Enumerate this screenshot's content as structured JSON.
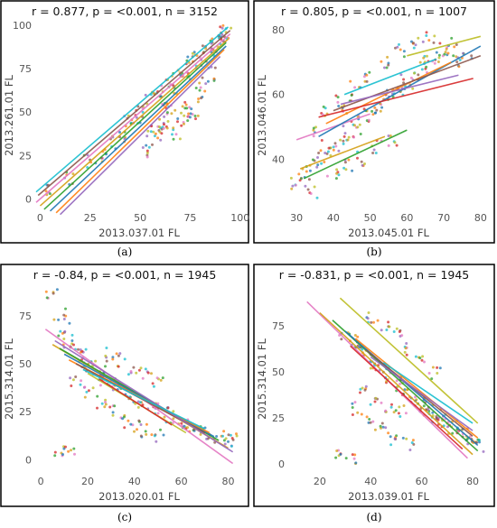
{
  "chart_data": [
    {
      "type": "scatter",
      "title": "r = 0.877, p = <0.001, n = 3152",
      "xlabel": "2013.037.01 FL",
      "ylabel": "2013.261.01 FL",
      "xlim": [
        -2,
        101
      ],
      "ylim": [
        -5,
        101
      ],
      "xticks": [
        "0",
        "25",
        "50",
        "75",
        "100"
      ],
      "yticks": [
        "0",
        "25",
        "50",
        "75",
        "100"
      ],
      "caption": "(a)",
      "grid": false,
      "legend": "none",
      "series_colors": [
        "#e377c2",
        "#d4a017",
        "#2ca02c",
        "#1f77b4",
        "#ff7f0e",
        "#8c564b",
        "#9467bd",
        "#17becf",
        "#bcbd22",
        "#d62728"
      ],
      "points": [
        [
          5,
          6
        ],
        [
          15,
          12
        ],
        [
          25,
          22
        ],
        [
          35,
          32
        ],
        [
          45,
          44
        ],
        [
          50,
          50
        ],
        [
          55,
          58
        ],
        [
          60,
          62
        ],
        [
          65,
          68
        ],
        [
          70,
          74
        ],
        [
          75,
          78
        ],
        [
          80,
          83
        ],
        [
          85,
          88
        ],
        [
          90,
          93
        ],
        [
          93,
          96
        ],
        [
          58,
          40
        ],
        [
          62,
          45
        ],
        [
          66,
          52
        ],
        [
          70,
          48
        ],
        [
          74,
          55
        ],
        [
          78,
          60
        ],
        [
          82,
          66
        ],
        [
          86,
          72
        ],
        [
          55,
          35
        ],
        [
          60,
          38
        ],
        [
          52,
          28
        ],
        [
          64,
          42
        ],
        [
          68,
          38
        ],
        [
          72,
          44
        ],
        [
          76,
          50
        ],
        [
          30,
          25
        ],
        [
          40,
          36
        ],
        [
          48,
          47
        ],
        [
          88,
          90
        ],
        [
          91,
          92
        ],
        [
          84,
          86
        ],
        [
          79,
          80
        ],
        [
          73,
          72
        ],
        [
          67,
          64
        ],
        [
          63,
          58
        ]
      ],
      "fit_lines": [
        [
          [
            -2,
            -2
          ],
          [
            95,
            95
          ]
        ],
        [
          [
            0,
            -4
          ],
          [
            94,
            92
          ]
        ],
        [
          [
            2,
            -6
          ],
          [
            93,
            90
          ]
        ],
        [
          [
            5,
            -7
          ],
          [
            93,
            88
          ]
        ],
        [
          [
            8,
            -8
          ],
          [
            92,
            86
          ]
        ],
        [
          [
            -1,
            2
          ],
          [
            95,
            97
          ]
        ],
        [
          [
            10,
            -9
          ],
          [
            90,
            82
          ]
        ],
        [
          [
            -2,
            4
          ],
          [
            94,
            99
          ]
        ]
      ]
    },
    {
      "type": "scatter",
      "title": "r = 0.805, p = <0.001, n = 1007",
      "xlabel": "2013.045.01 FL",
      "ylabel": "2013.046.01 FL",
      "xlim": [
        28,
        82
      ],
      "ylim": [
        25,
        82
      ],
      "xticks": [
        "30",
        "40",
        "50",
        "60",
        "70",
        "80"
      ],
      "yticks": [
        "40",
        "60",
        "80"
      ],
      "caption": "(b)",
      "grid": false,
      "legend": "none",
      "series_colors": [
        "#e377c2",
        "#d4a017",
        "#2ca02c",
        "#1f77b4",
        "#ff7f0e",
        "#8c564b",
        "#9467bd",
        "#17becf",
        "#bcbd22",
        "#d62728"
      ],
      "points": [
        [
          32,
          35
        ],
        [
          34,
          38
        ],
        [
          36,
          40
        ],
        [
          38,
          42
        ],
        [
          40,
          44
        ],
        [
          42,
          46
        ],
        [
          44,
          48
        ],
        [
          46,
          50
        ],
        [
          48,
          52
        ],
        [
          50,
          54
        ],
        [
          52,
          56
        ],
        [
          54,
          58
        ],
        [
          56,
          60
        ],
        [
          58,
          62
        ],
        [
          60,
          64
        ],
        [
          62,
          66
        ],
        [
          64,
          68
        ],
        [
          66,
          70
        ],
        [
          68,
          72
        ],
        [
          70,
          74
        ],
        [
          72,
          76
        ],
        [
          74,
          70
        ],
        [
          76,
          72
        ],
        [
          44,
          38
        ],
        [
          48,
          40
        ],
        [
          52,
          44
        ],
        [
          56,
          46
        ],
        [
          38,
          54
        ],
        [
          42,
          58
        ],
        [
          46,
          62
        ],
        [
          50,
          66
        ],
        [
          54,
          70
        ],
        [
          58,
          74
        ],
        [
          62,
          76
        ],
        [
          66,
          78
        ],
        [
          34,
          30
        ],
        [
          30,
          32
        ],
        [
          40,
          36
        ],
        [
          36,
          48
        ],
        [
          44,
          56
        ]
      ],
      "fit_lines": [
        [
          [
            30,
            46
          ],
          [
            50,
            54
          ]
        ],
        [
          [
            31,
            37
          ],
          [
            54,
            47
          ]
        ],
        [
          [
            32,
            34
          ],
          [
            60,
            49
          ]
        ],
        [
          [
            36,
            47
          ],
          [
            80,
            75
          ]
        ],
        [
          [
            38,
            51
          ],
          [
            72,
            70
          ]
        ],
        [
          [
            40,
            55
          ],
          [
            80,
            72
          ]
        ],
        [
          [
            42,
            57
          ],
          [
            74,
            66
          ]
        ],
        [
          [
            43,
            60
          ],
          [
            68,
            71
          ]
        ],
        [
          [
            60,
            72
          ],
          [
            80,
            78
          ]
        ],
        [
          [
            36,
            53
          ],
          [
            78,
            65
          ]
        ]
      ]
    },
    {
      "type": "scatter",
      "title": "r = -0.84, p = <0.001, n = 1945",
      "xlabel": "2013.020.01 FL",
      "ylabel": "2015.314.01 FL",
      "xlim": [
        -2,
        86
      ],
      "ylim": [
        -6,
        90
      ],
      "xticks": [
        "0",
        "20",
        "40",
        "60",
        "80"
      ],
      "yticks": [
        "0",
        "25",
        "50",
        "75"
      ],
      "caption": "(c)",
      "grid": false,
      "legend": "none",
      "series_colors": [
        "#e377c2",
        "#d4a017",
        "#2ca02c",
        "#1f77b4",
        "#ff7f0e",
        "#8c564b",
        "#9467bd",
        "#17becf",
        "#bcbd22",
        "#d62728"
      ],
      "points": [
        [
          5,
          85
        ],
        [
          8,
          75
        ],
        [
          10,
          68
        ],
        [
          12,
          62
        ],
        [
          15,
          58
        ],
        [
          18,
          54
        ],
        [
          20,
          50
        ],
        [
          22,
          48
        ],
        [
          25,
          45
        ],
        [
          28,
          42
        ],
        [
          30,
          40
        ],
        [
          33,
          37
        ],
        [
          36,
          34
        ],
        [
          40,
          32
        ],
        [
          44,
          29
        ],
        [
          48,
          26
        ],
        [
          52,
          24
        ],
        [
          56,
          22
        ],
        [
          60,
          20
        ],
        [
          64,
          18
        ],
        [
          68,
          16
        ],
        [
          72,
          14
        ],
        [
          76,
          12
        ],
        [
          80,
          11
        ],
        [
          82,
          10
        ],
        [
          15,
          40
        ],
        [
          20,
          35
        ],
        [
          25,
          30
        ],
        [
          30,
          25
        ],
        [
          35,
          20
        ],
        [
          40,
          18
        ],
        [
          45,
          15
        ],
        [
          50,
          12
        ],
        [
          30,
          55
        ],
        [
          35,
          52
        ],
        [
          40,
          48
        ],
        [
          45,
          44
        ],
        [
          50,
          40
        ],
        [
          8,
          5
        ],
        [
          12,
          4
        ]
      ],
      "fit_lines": [
        [
          [
            2,
            68
          ],
          [
            82,
            -2
          ]
        ],
        [
          [
            5,
            60
          ],
          [
            80,
            6
          ]
        ],
        [
          [
            8,
            58
          ],
          [
            76,
            10
          ]
        ],
        [
          [
            10,
            55
          ],
          [
            74,
            12
          ]
        ],
        [
          [
            12,
            52
          ],
          [
            72,
            14
          ]
        ],
        [
          [
            15,
            50
          ],
          [
            70,
            14
          ]
        ],
        [
          [
            6,
            62
          ],
          [
            82,
            4
          ]
        ],
        [
          [
            18,
            47
          ],
          [
            70,
            16
          ]
        ],
        [
          [
            20,
            45
          ],
          [
            62,
            14
          ]
        ],
        [
          [
            25,
            42
          ],
          [
            56,
            18
          ]
        ]
      ]
    },
    {
      "type": "scatter",
      "title": "r = -0.831, p = <0.001, n = 1945",
      "xlabel": "2013.039.01 FL",
      "ylabel": "2015.314.01 FL",
      "xlim": [
        8,
        86
      ],
      "ylim": [
        -4,
        96
      ],
      "xticks": [
        "20",
        "40",
        "60",
        "80"
      ],
      "yticks": [
        "0",
        "25",
        "50",
        "75"
      ],
      "caption": "(d)",
      "grid": false,
      "legend": "none",
      "series_colors": [
        "#e377c2",
        "#d4a017",
        "#2ca02c",
        "#1f77b4",
        "#ff7f0e",
        "#8c564b",
        "#9467bd",
        "#17becf",
        "#bcbd22",
        "#d62728"
      ],
      "points": [
        [
          30,
          70
        ],
        [
          33,
          66
        ],
        [
          36,
          62
        ],
        [
          39,
          58
        ],
        [
          42,
          54
        ],
        [
          45,
          50
        ],
        [
          48,
          46
        ],
        [
          50,
          44
        ],
        [
          52,
          40
        ],
        [
          55,
          37
        ],
        [
          58,
          34
        ],
        [
          60,
          32
        ],
        [
          62,
          30
        ],
        [
          64,
          28
        ],
        [
          66,
          26
        ],
        [
          68,
          24
        ],
        [
          70,
          22
        ],
        [
          72,
          20
        ],
        [
          74,
          18
        ],
        [
          76,
          16
        ],
        [
          78,
          14
        ],
        [
          80,
          12
        ],
        [
          82,
          10
        ],
        [
          40,
          80
        ],
        [
          45,
          75
        ],
        [
          50,
          70
        ],
        [
          55,
          62
        ],
        [
          60,
          55
        ],
        [
          65,
          50
        ],
        [
          35,
          30
        ],
        [
          40,
          22
        ],
        [
          45,
          18
        ],
        [
          50,
          12
        ],
        [
          55,
          10
        ],
        [
          38,
          40
        ],
        [
          42,
          36
        ],
        [
          48,
          32
        ],
        [
          52,
          28
        ],
        [
          28,
          4
        ],
        [
          32,
          3
        ]
      ],
      "fit_lines": [
        [
          [
            15,
            88
          ],
          [
            78,
            3
          ]
        ],
        [
          [
            20,
            82
          ],
          [
            80,
            5
          ]
        ],
        [
          [
            25,
            78
          ],
          [
            82,
            7
          ]
        ],
        [
          [
            30,
            72
          ],
          [
            82,
            10
          ]
        ],
        [
          [
            34,
            68
          ],
          [
            82,
            14
          ]
        ],
        [
          [
            38,
            62
          ],
          [
            80,
            15
          ]
        ],
        [
          [
            40,
            58
          ],
          [
            80,
            18
          ]
        ],
        [
          [
            45,
            55
          ],
          [
            80,
            22
          ]
        ],
        [
          [
            28,
            90
          ],
          [
            82,
            22
          ]
        ],
        [
          [
            32,
            64
          ],
          [
            76,
            8
          ]
        ]
      ]
    }
  ]
}
